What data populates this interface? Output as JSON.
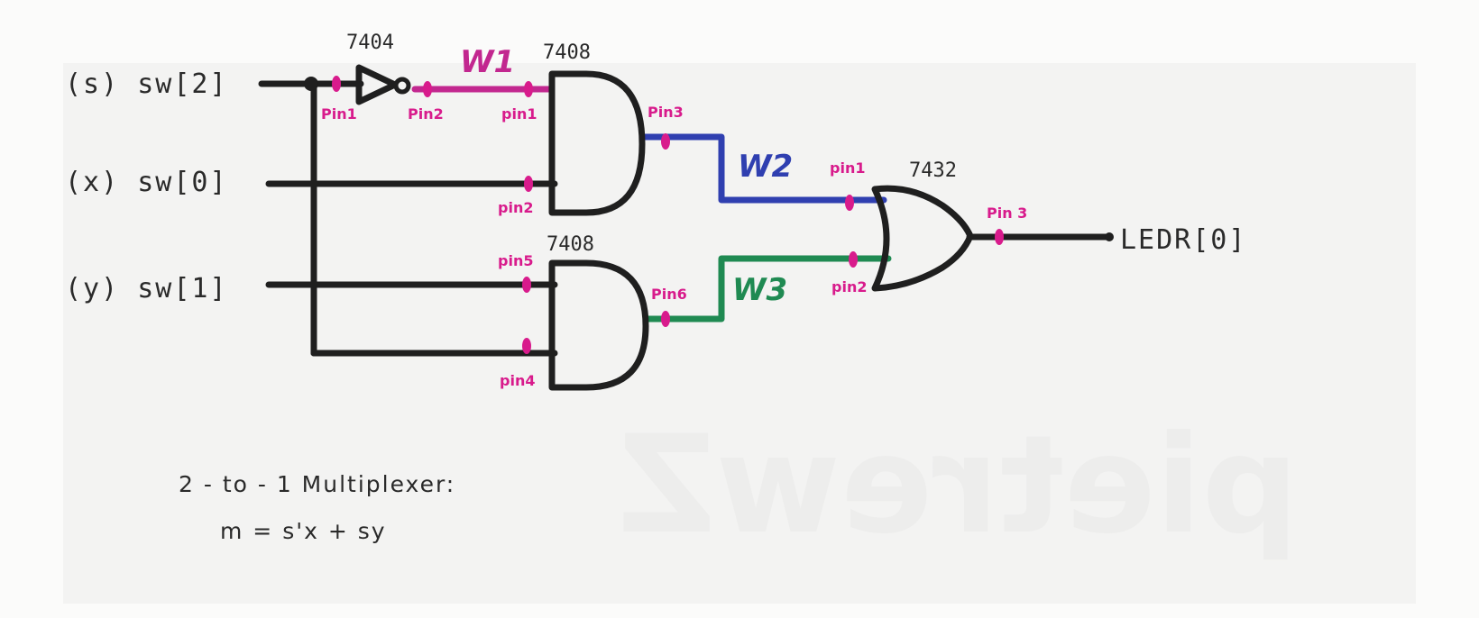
{
  "colors": {
    "ink": "#1f1f1f",
    "pin": "#d81b8c",
    "w1": "#c2278f",
    "w2": "#2f3fb0",
    "w3": "#1f8a52"
  },
  "watermark": "pietrewZ",
  "inputs": {
    "s": "(s)  sw[2]",
    "x": "(x)  sw[0]",
    "y": "(y)  sw[1]"
  },
  "output": "LEDR[0]",
  "chips": {
    "not": "7404",
    "and_top": "7408",
    "and_bottom": "7408",
    "or": "7432"
  },
  "pins": {
    "not_in": "Pin1",
    "not_out": "Pin2",
    "and1_in1": "pin1",
    "and1_in2": "pin2",
    "and1_out": "Pin3",
    "and2_in5": "pin5",
    "and2_in4": "pin4",
    "and2_out": "Pin6",
    "or_in1": "pin1",
    "or_in2": "pin2",
    "or_out": "Pin 3"
  },
  "wires": {
    "w1": "W1",
    "w2": "W2",
    "w3": "W3"
  },
  "caption": {
    "line1": "2 - to - 1  Multiplexer:",
    "line2": "m = s'x + sy"
  }
}
